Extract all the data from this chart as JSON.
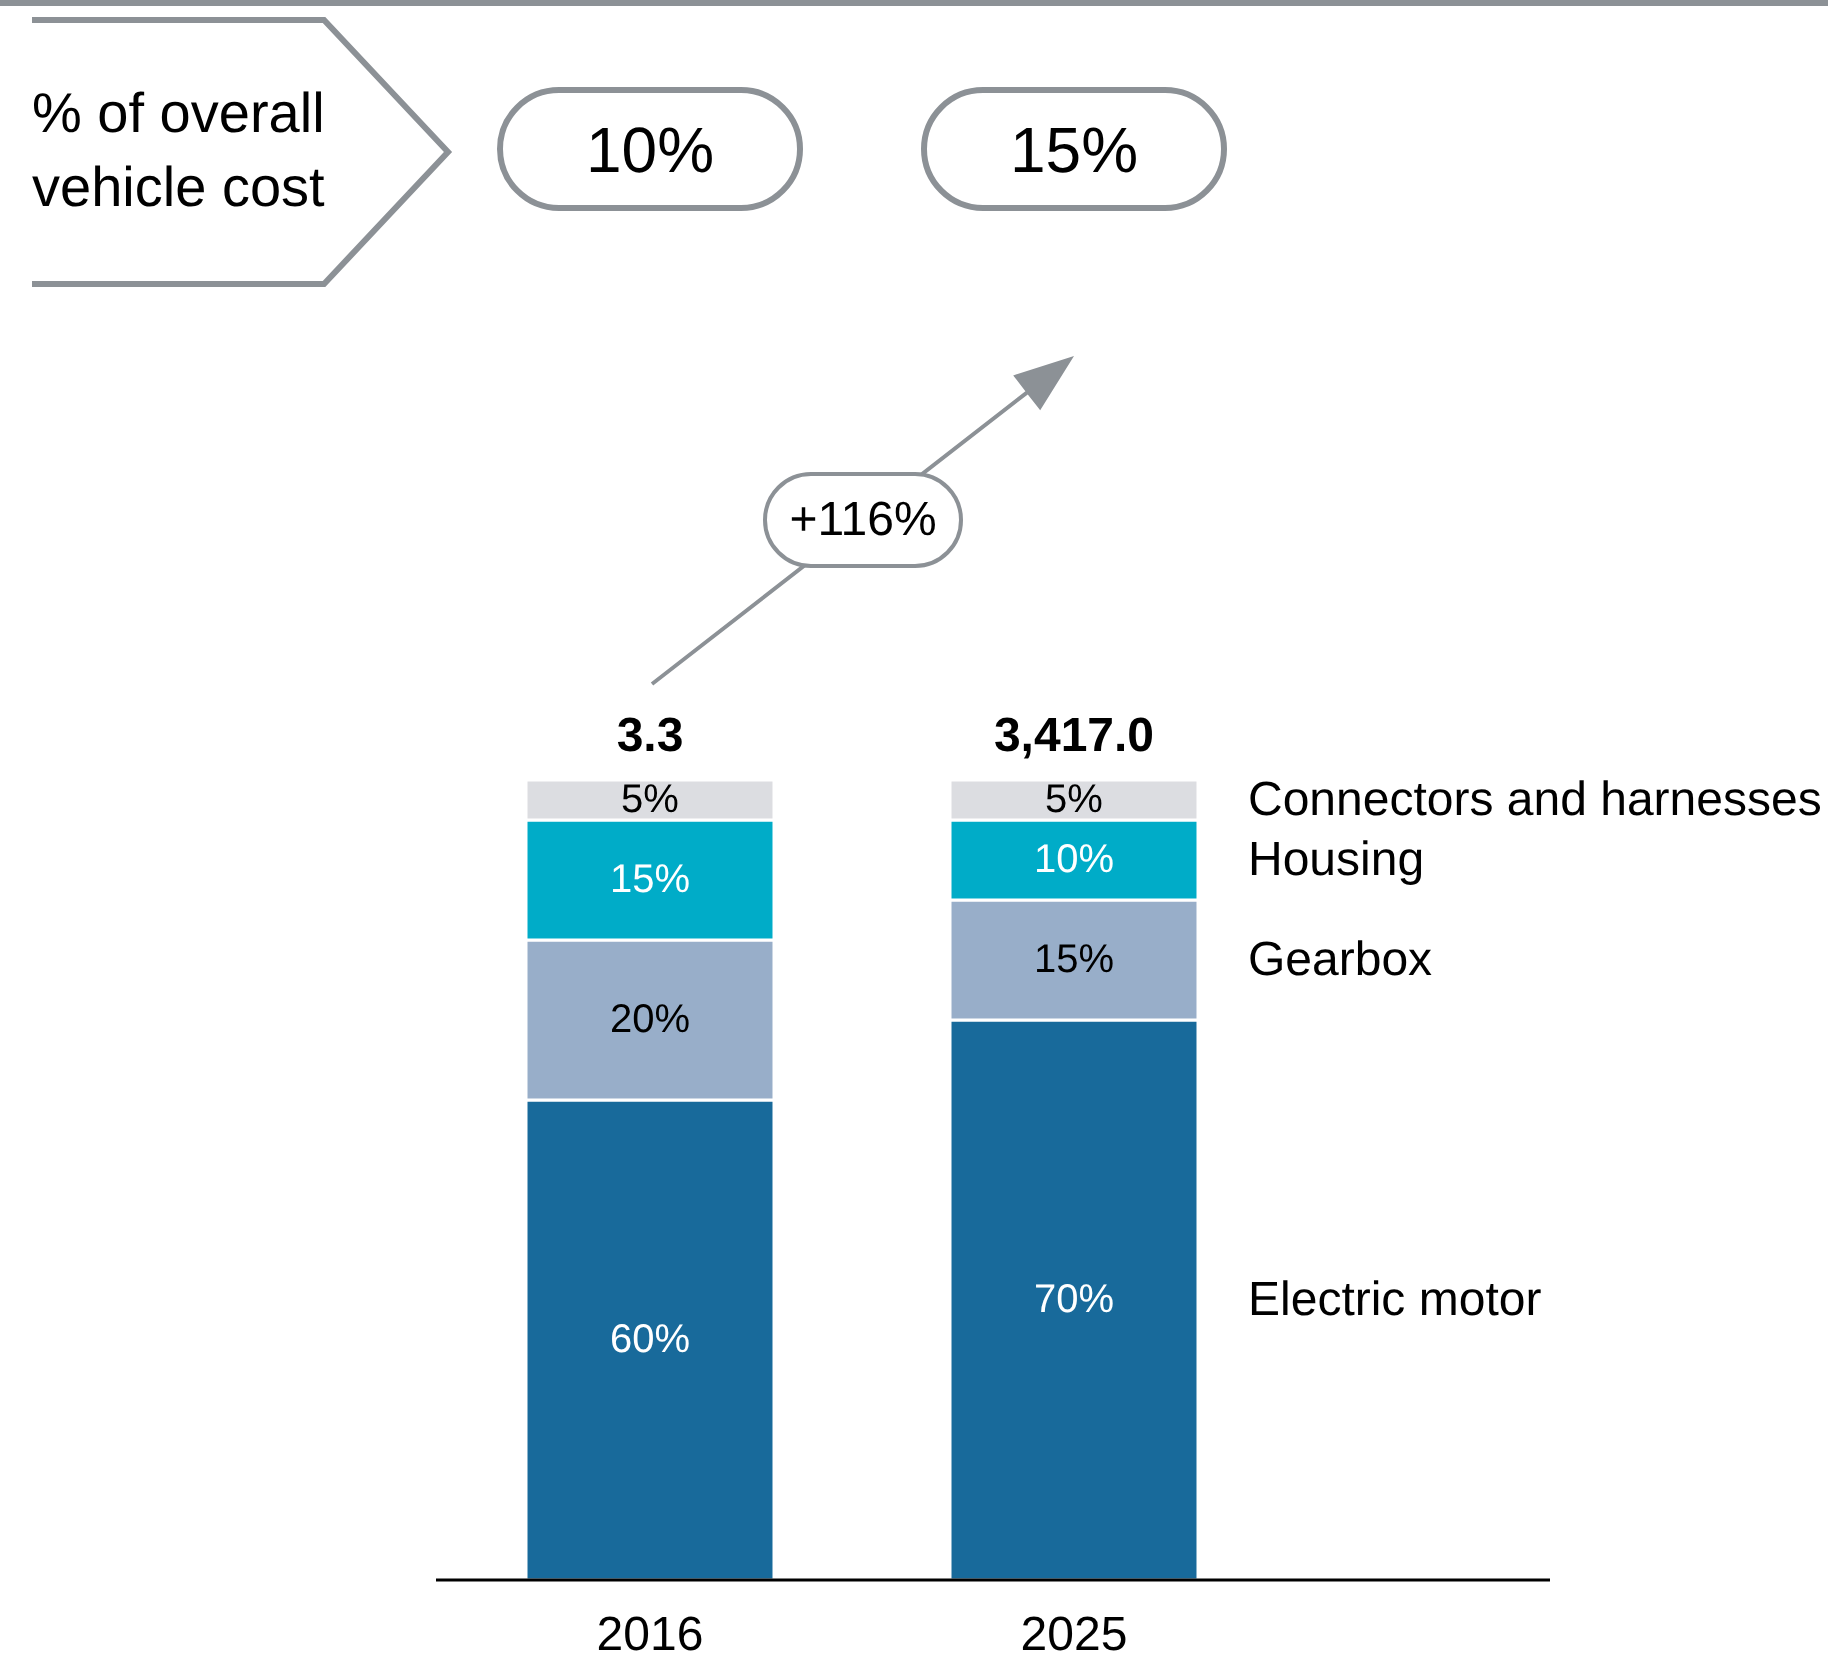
{
  "chart_data": {
    "type": "bar",
    "stacked": true,
    "categories": [
      "2016",
      "2025"
    ],
    "series": [
      {
        "name": "Electric motor",
        "color": "#186a9b",
        "values": [
          60,
          70
        ],
        "value_labels": [
          "60%",
          "70%"
        ]
      },
      {
        "name": "Gearbox",
        "color": "#98aec9",
        "values": [
          20,
          15
        ],
        "value_labels": [
          "20%",
          "15%"
        ]
      },
      {
        "name": "Housing",
        "color": "#00acc8",
        "values": [
          15,
          10
        ],
        "value_labels": [
          "15%",
          "10%"
        ]
      },
      {
        "name": "Connectors and harnesses",
        "color": "#dcdde1",
        "values": [
          5,
          5
        ],
        "value_labels": [
          "5%",
          "5%"
        ]
      }
    ],
    "annotations": [
      "% of overall vehicle cost",
      "10%",
      "15%",
      "+116%",
      {
        "text": "3.3",
        "x": "2016",
        "y": 100
      },
      {
        "text": "3,417.0",
        "x": "2025",
        "y": 100
      }
    ]
  }
}
